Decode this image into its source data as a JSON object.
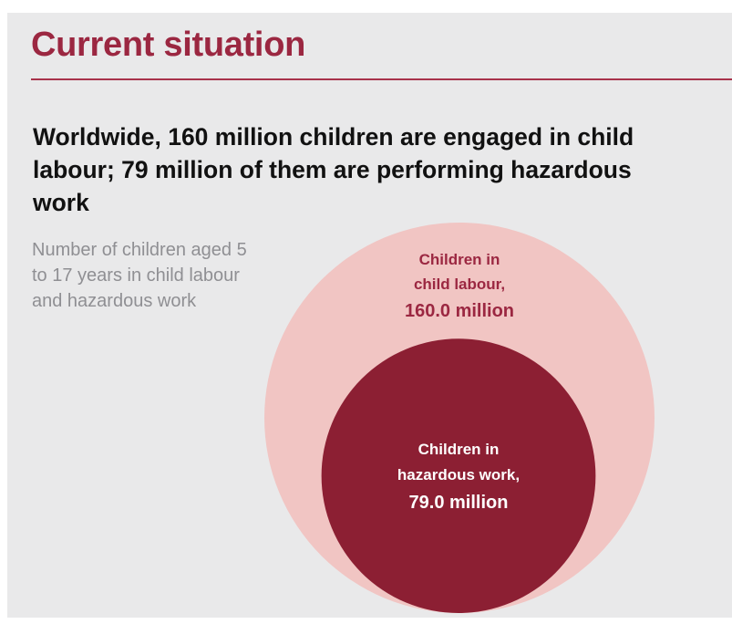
{
  "header": {
    "title": "Current situation"
  },
  "headline": "Worldwide, 160 million children are engaged in child labour; 79 million of them are performing hazardous work",
  "chart_data": {
    "type": "nested-circle",
    "subtitle": "Number of children aged 5 to 17 years in child labour and hazardous work",
    "series": [
      {
        "name": "Children in child labour,",
        "value": 160.0,
        "value_label": "160.0 million",
        "color": "#f1c5c3"
      },
      {
        "name": "Children in hazardous work,",
        "value": 79.0,
        "value_label": "79.0 million",
        "color": "#8c1f33"
      }
    ]
  }
}
